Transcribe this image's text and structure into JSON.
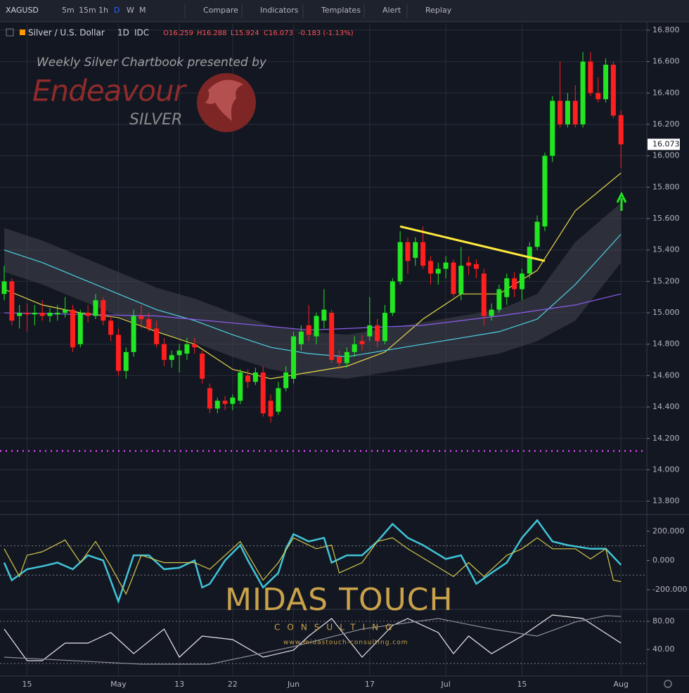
{
  "toolbar": {
    "symbol": "XAGUSD",
    "intervals": [
      "5m",
      "15m",
      "1h",
      "D",
      "W",
      "M"
    ],
    "active_interval": 3,
    "buttons": [
      "Compare",
      "Indicators",
      "Templates",
      "Alert",
      "Replay"
    ]
  },
  "legend": {
    "title": "Silver / U.S. Dollar",
    "interval": "1D",
    "source": "IDC",
    "open": "O16.259",
    "high": "H16.288",
    "low": "L15.924",
    "close": "C16.073",
    "change": "-0.183 (-1.13%)"
  },
  "watermarks": {
    "headline": "Weekly Silver Chartbook presented by",
    "brand": "Endeavour",
    "brand_sub": "SILVER",
    "sponsor": "MIDAS TOUCH",
    "sponsor_sub": "CONSULTING",
    "sponsor_url": "www.midastouch-consulting.com"
  },
  "chart_data": [
    {
      "type": "candlestick",
      "categories": [
        null,
        null,
        null,
        "15",
        null,
        null,
        null,
        null,
        null,
        null,
        null,
        null,
        null,
        null,
        null,
        "May",
        null,
        null,
        null,
        null,
        null,
        null,
        null,
        "13",
        null,
        null,
        null,
        null,
        null,
        null,
        "22",
        null,
        null,
        null,
        null,
        null,
        null,
        null,
        "Jun",
        null,
        null,
        null,
        null,
        null,
        null,
        null,
        null,
        null,
        "17",
        null,
        null,
        null,
        null,
        null,
        null,
        null,
        null,
        null,
        "Jul",
        null,
        null,
        null,
        null,
        null,
        null,
        null,
        null,
        null,
        "15",
        null,
        null,
        null,
        null,
        null,
        null,
        null,
        null,
        null,
        null,
        null,
        null,
        "Aug"
      ],
      "open": [
        15.12,
        15.2,
        14.98,
        15.0,
        14.99,
        15.0,
        14.98,
        14.99,
        15.0,
        15.02,
        14.8,
        15.0,
        14.98,
        15.08,
        14.95,
        14.86,
        14.63,
        14.75,
        14.98,
        14.96,
        14.9,
        14.8,
        14.7,
        14.73,
        14.74,
        14.8,
        14.74,
        14.52,
        14.39,
        14.44,
        14.42,
        14.44,
        14.6,
        14.56,
        14.62,
        14.44,
        14.37,
        14.52,
        14.58,
        14.8,
        14.92,
        14.85,
        14.95,
        15.0,
        14.72,
        14.68,
        14.75,
        14.82,
        14.85,
        14.92,
        14.82,
        15.0,
        15.2,
        15.45,
        15.35,
        15.45,
        15.33,
        15.25,
        15.28,
        15.32,
        15.12,
        15.32,
        15.31,
        15.25,
        14.98,
        15.02,
        15.1,
        15.22,
        15.15,
        15.25,
        15.42,
        15.55,
        16.0,
        16.35,
        16.2,
        16.35,
        16.2,
        16.6,
        16.4,
        16.36,
        16.58,
        16.259
      ],
      "high": [
        15.3,
        15.22,
        15.05,
        15.06,
        15.05,
        15.08,
        15.03,
        15.05,
        15.1,
        15.05,
        15.02,
        15.05,
        15.12,
        15.1,
        14.98,
        14.9,
        14.78,
        15.02,
        15.05,
        15.0,
        14.95,
        14.84,
        14.76,
        14.8,
        14.84,
        14.84,
        14.76,
        14.55,
        14.46,
        14.47,
        14.48,
        14.64,
        14.64,
        14.65,
        14.66,
        14.48,
        14.56,
        14.66,
        14.88,
        14.92,
        15.05,
        15.0,
        15.15,
        15.02,
        14.76,
        14.78,
        14.85,
        14.86,
        15.1,
        14.96,
        15.05,
        15.22,
        15.52,
        15.48,
        15.48,
        15.55,
        15.36,
        15.32,
        15.36,
        15.34,
        15.42,
        15.36,
        15.34,
        15.28,
        15.06,
        15.18,
        15.25,
        15.26,
        15.28,
        15.45,
        15.62,
        16.02,
        16.38,
        16.6,
        16.4,
        16.45,
        16.66,
        16.66,
        16.5,
        16.62,
        16.6,
        16.288
      ],
      "low": [
        15.08,
        14.92,
        14.9,
        14.88,
        14.92,
        14.95,
        14.94,
        14.95,
        14.97,
        14.75,
        14.78,
        14.94,
        14.96,
        14.92,
        14.82,
        14.6,
        14.58,
        14.72,
        14.9,
        14.88,
        14.78,
        14.66,
        14.65,
        14.62,
        14.7,
        14.74,
        14.55,
        14.36,
        14.36,
        14.38,
        14.38,
        14.42,
        14.52,
        14.54,
        14.34,
        14.3,
        14.35,
        14.5,
        14.55,
        14.76,
        14.82,
        14.8,
        14.9,
        14.68,
        14.64,
        14.65,
        14.72,
        14.76,
        14.82,
        14.78,
        14.8,
        14.98,
        15.18,
        15.25,
        15.3,
        15.28,
        15.18,
        15.18,
        15.22,
        15.1,
        15.08,
        15.24,
        15.22,
        14.92,
        14.95,
        15.0,
        15.05,
        15.1,
        15.08,
        15.22,
        15.4,
        15.52,
        15.96,
        16.18,
        16.18,
        16.18,
        16.18,
        16.38,
        16.34,
        16.34,
        16.24,
        15.924
      ],
      "close": [
        15.2,
        14.95,
        15.0,
        14.99,
        15.0,
        14.98,
        15.0,
        15.0,
        15.02,
        14.78,
        15.0,
        14.98,
        15.08,
        14.95,
        14.86,
        14.63,
        14.75,
        14.98,
        14.96,
        14.9,
        14.8,
        14.7,
        14.73,
        14.76,
        14.8,
        14.78,
        14.58,
        14.39,
        14.44,
        14.42,
        14.46,
        14.62,
        14.56,
        14.62,
        14.36,
        14.34,
        14.52,
        14.62,
        14.85,
        14.88,
        14.86,
        14.98,
        15.02,
        14.7,
        14.68,
        14.75,
        14.8,
        14.8,
        14.92,
        14.82,
        15.0,
        15.2,
        15.45,
        15.33,
        15.45,
        15.3,
        15.25,
        15.28,
        15.32,
        15.12,
        15.3,
        15.3,
        15.28,
        14.98,
        15.02,
        15.15,
        15.22,
        15.15,
        15.25,
        15.42,
        15.58,
        16.0,
        16.35,
        16.2,
        16.35,
        16.2,
        16.6,
        16.4,
        16.36,
        16.58,
        16.256,
        16.073
      ],
      "up_color": "#22e622",
      "down_color": "#ff1f1f",
      "last_price_label": "16.073",
      "series": [
        {
          "color": "#e6d84a",
          "x": [
            0,
            5,
            10,
            15,
            20,
            25,
            30,
            35,
            40,
            45,
            50,
            55,
            60,
            65,
            70,
            75,
            81
          ],
          "values": [
            15.15,
            15.05,
            15.0,
            14.97,
            14.88,
            14.8,
            14.64,
            14.58,
            14.62,
            14.66,
            14.75,
            14.96,
            15.12,
            15.12,
            15.27,
            15.65,
            15.89
          ]
        },
        {
          "color": "#4dd0e1",
          "x": [
            0,
            5,
            10,
            15,
            20,
            25,
            30,
            35,
            40,
            45,
            50,
            55,
            60,
            65,
            70,
            75,
            81
          ],
          "values": [
            15.4,
            15.32,
            15.22,
            15.12,
            15.02,
            14.95,
            14.86,
            14.78,
            14.74,
            14.72,
            14.76,
            14.8,
            14.84,
            14.88,
            14.96,
            15.18,
            15.5
          ]
        },
        {
          "color": "#8e5cf0",
          "x": [
            0,
            20,
            40,
            55,
            65,
            75,
            81
          ],
          "values": [
            15.0,
            14.98,
            14.89,
            14.92,
            14.98,
            15.05,
            15.12
          ]
        }
      ],
      "band": {
        "color": "#434651",
        "x": [
          0,
          5,
          10,
          15,
          20,
          25,
          30,
          35,
          40,
          45,
          50,
          55,
          60,
          65,
          70,
          75,
          81
        ],
        "upper": [
          15.54,
          15.46,
          15.36,
          15.26,
          15.16,
          15.09,
          15.0,
          14.92,
          14.88,
          14.86,
          14.9,
          14.94,
          14.98,
          15.02,
          15.12,
          15.45,
          15.7
        ],
        "lower": [
          15.26,
          15.18,
          15.08,
          14.98,
          14.88,
          14.81,
          14.72,
          14.64,
          14.6,
          14.58,
          14.62,
          14.66,
          14.7,
          14.74,
          14.82,
          14.95,
          15.32
        ]
      },
      "trendline": {
        "color": "#ffeb3b",
        "x": [
          52,
          71
        ],
        "values": [
          15.55,
          15.33
        ]
      },
      "levels": [
        {
          "value": 14.12,
          "color": "#e040fb"
        }
      ],
      "ylim": [
        13.72,
        16.84
      ],
      "yticks": [
        {
          "value": 13.8,
          "label": "13.800"
        },
        {
          "value": 14.0,
          "label": "14.000"
        },
        {
          "value": 14.2,
          "label": "14.200"
        },
        {
          "value": 14.4,
          "label": "14.400"
        },
        {
          "value": 14.6,
          "label": "14.600"
        },
        {
          "value": 14.8,
          "label": "14.800"
        },
        {
          "value": 15.0,
          "label": "15.000"
        },
        {
          "value": 15.2,
          "label": "15.200"
        },
        {
          "value": 15.4,
          "label": "15.400"
        },
        {
          "value": 15.6,
          "label": "15.600"
        },
        {
          "value": 15.8,
          "label": "15.800"
        },
        {
          "value": 16.0,
          "label": "16.000"
        },
        {
          "value": 16.2,
          "label": "16.200"
        },
        {
          "value": 16.4,
          "label": "16.400"
        },
        {
          "value": 16.6,
          "label": "16.600"
        },
        {
          "value": 16.8,
          "label": "16.800"
        }
      ],
      "grid": true
    },
    {
      "type": "line",
      "series": [
        {
          "color": "#40c4d8",
          "x": [
            0,
            1,
            3,
            5,
            7,
            9,
            11,
            13,
            15,
            17,
            19,
            21,
            23,
            25,
            26,
            27,
            29,
            31,
            32,
            34,
            36,
            37,
            38,
            40,
            42,
            43,
            45,
            47,
            49,
            51,
            53,
            55,
            58,
            60,
            62,
            64,
            66,
            68,
            70,
            72,
            74,
            77,
            79,
            81
          ],
          "values": [
            -15,
            -135,
            -60,
            -40,
            -15,
            -60,
            35,
            0,
            -280,
            35,
            35,
            -60,
            -50,
            0,
            -185,
            -160,
            0,
            105,
            0,
            -185,
            -85,
            80,
            180,
            130,
            155,
            -15,
            35,
            35,
            130,
            250,
            155,
            105,
            10,
            35,
            -160,
            -85,
            -15,
            155,
            275,
            130,
            105,
            80,
            80,
            -30
          ]
        },
        {
          "color": "#d4c74a",
          "x": [
            0,
            2,
            3,
            5,
            8,
            10,
            12,
            14,
            16,
            18,
            21,
            23,
            25,
            27,
            31,
            34,
            36,
            38,
            41,
            43,
            44,
            47,
            49,
            51,
            53,
            56,
            59,
            61,
            63,
            66,
            68,
            70,
            72,
            75,
            77,
            79,
            80,
            81
          ],
          "values": [
            80,
            -110,
            35,
            60,
            140,
            -15,
            130,
            -40,
            -230,
            35,
            -15,
            -15,
            -15,
            -60,
            130,
            -135,
            -15,
            155,
            80,
            105,
            -85,
            -15,
            130,
            155,
            80,
            -15,
            -110,
            -15,
            -110,
            35,
            80,
            155,
            80,
            80,
            10,
            80,
            -135,
            -145
          ]
        }
      ],
      "reference_lines": [
        100,
        -100
      ],
      "ylim": [
        -330,
        310
      ],
      "yticks": [
        {
          "value": 200,
          "label": "200.000"
        },
        {
          "value": 0,
          "label": "0.000"
        },
        {
          "value": -200,
          "label": "-200.000"
        }
      ]
    },
    {
      "type": "line",
      "series": [
        {
          "color": "#e8e8e8",
          "x": [
            0,
            3,
            5,
            8,
            11,
            14,
            17,
            21,
            23,
            26,
            30,
            34,
            38,
            40,
            43,
            47,
            51,
            53,
            57,
            59,
            61,
            64,
            68,
            72,
            76,
            81
          ],
          "values": [
            69,
            24,
            24,
            49,
            49,
            64,
            34,
            69,
            29,
            59,
            54,
            29,
            39,
            59,
            84,
            29,
            74,
            84,
            64,
            34,
            59,
            34,
            59,
            89,
            84,
            49
          ]
        },
        {
          "color": "#8a8d96",
          "x": [
            0,
            9,
            18,
            27,
            38,
            47,
            57,
            64,
            70,
            75,
            79,
            81
          ],
          "values": [
            29,
            24,
            19,
            19,
            44,
            69,
            84,
            69,
            59,
            79,
            88,
            87
          ]
        }
      ],
      "reference_lines": [
        80,
        20
      ],
      "ylim": [
        2,
        96
      ],
      "yticks": [
        {
          "value": 80,
          "label": "80.00"
        },
        {
          "value": 40,
          "label": "40.00"
        }
      ]
    }
  ]
}
